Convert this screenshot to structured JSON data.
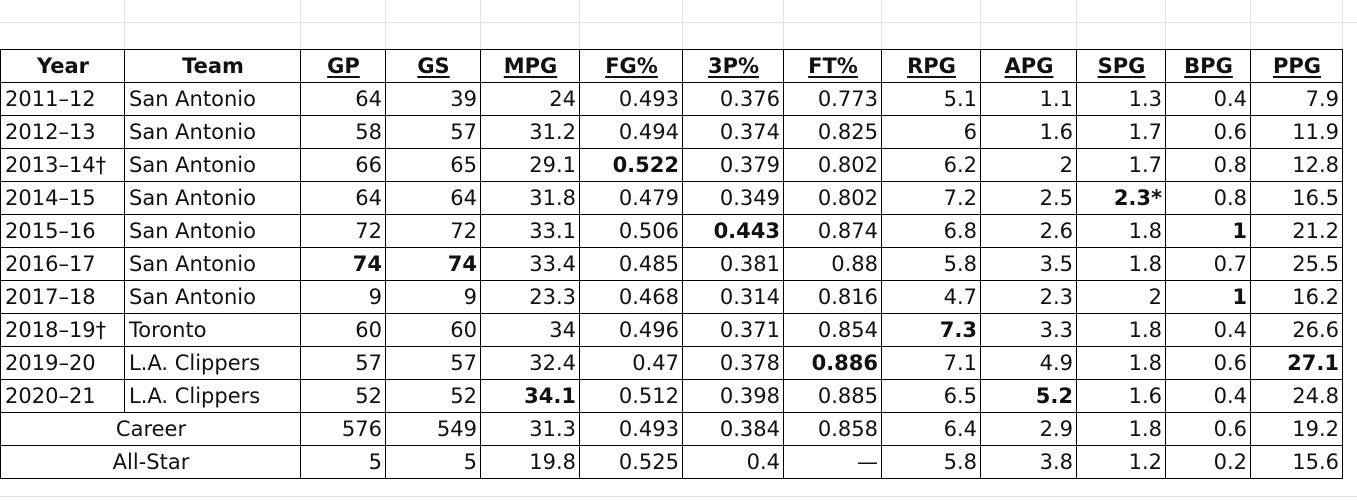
{
  "columns": [
    "Year",
    "Team",
    "GP",
    "GS",
    "MPG",
    "FG%",
    "3P%",
    "FT%",
    "RPG",
    "APG",
    "SPG",
    "BPG",
    "PPG"
  ],
  "rows": [
    {
      "year": "2011–12",
      "team": "San Antonio",
      "stats": [
        "64",
        "39",
        "24",
        "0.493",
        "0.376",
        "0.773",
        "5.1",
        "1.1",
        "1.3",
        "0.4",
        "7.9"
      ]
    },
    {
      "year": "2012–13",
      "team": "San Antonio",
      "stats": [
        "58",
        "57",
        "31.2",
        "0.494",
        "0.374",
        "0.825",
        "6",
        "1.6",
        "1.7",
        "0.6",
        "11.9"
      ]
    },
    {
      "year": "2013–14†",
      "team": "San Antonio",
      "stats": [
        "66",
        "65",
        "29.1",
        "0.522",
        "0.379",
        "0.802",
        "6.2",
        "2",
        "1.7",
        "0.8",
        "12.8"
      ]
    },
    {
      "year": "2014–15",
      "team": "San Antonio",
      "stats": [
        "64",
        "64",
        "31.8",
        "0.479",
        "0.349",
        "0.802",
        "7.2",
        "2.5",
        "2.3*",
        "0.8",
        "16.5"
      ]
    },
    {
      "year": "2015–16",
      "team": "San Antonio",
      "stats": [
        "72",
        "72",
        "33.1",
        "0.506",
        "0.443",
        "0.874",
        "6.8",
        "2.6",
        "1.8",
        "1",
        "21.2"
      ]
    },
    {
      "year": "2016–17",
      "team": "San Antonio",
      "stats": [
        "74",
        "74",
        "33.4",
        "0.485",
        "0.381",
        "0.88",
        "5.8",
        "3.5",
        "1.8",
        "0.7",
        "25.5"
      ]
    },
    {
      "year": "2017–18",
      "team": "San Antonio",
      "stats": [
        "9",
        "9",
        "23.3",
        "0.468",
        "0.314",
        "0.816",
        "4.7",
        "2.3",
        "2",
        "1",
        "16.2"
      ]
    },
    {
      "year": "2018–19†",
      "team": "Toronto",
      "stats": [
        "60",
        "60",
        "34",
        "0.496",
        "0.371",
        "0.854",
        "7.3",
        "3.3",
        "1.8",
        "0.4",
        "26.6"
      ]
    },
    {
      "year": "2019–20",
      "team": "L.A. Clippers",
      "stats": [
        "57",
        "57",
        "32.4",
        "0.47",
        "0.378",
        "0.886",
        "7.1",
        "4.9",
        "1.8",
        "0.6",
        "27.1"
      ]
    },
    {
      "year": "2020–21",
      "team": "L.A. Clippers",
      "stats": [
        "52",
        "52",
        "34.1",
        "0.512",
        "0.398",
        "0.885",
        "6.5",
        "5.2",
        "1.6",
        "0.4",
        "24.8"
      ]
    }
  ],
  "summary_rows": [
    {
      "label": "Career",
      "stats": [
        "576",
        "549",
        "31.3",
        "0.493",
        "0.384",
        "0.858",
        "6.4",
        "2.9",
        "1.8",
        "0.6",
        "19.2"
      ]
    },
    {
      "label": "All-Star",
      "stats": [
        "5",
        "5",
        "19.8",
        "0.525",
        "0.4",
        "—",
        "5.8",
        "3.8",
        "1.2",
        "0.2",
        "15.6"
      ]
    }
  ]
}
